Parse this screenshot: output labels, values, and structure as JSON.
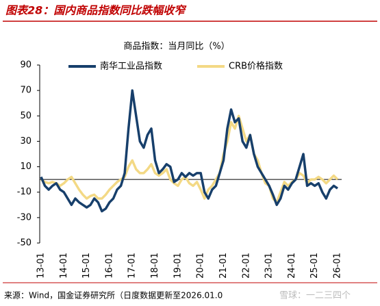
{
  "chart_data": {
    "type": "line",
    "figure_title": "图表28：国内商品指数同比跌幅收窄",
    "title": "商品指数：当月同比（%）",
    "source": "来源：Wind，国金证券研究所（日度数据更新至2026.01.0",
    "watermark": "雪球：一二三四个",
    "legend": "top",
    "ylim": [
      -50,
      90
    ],
    "yticks": [
      -50,
      -30,
      -10,
      10,
      30,
      50,
      70,
      90
    ],
    "categories": [
      "13-01",
      null,
      null,
      null,
      null,
      null,
      "14-01",
      null,
      null,
      null,
      null,
      null,
      "15-01",
      null,
      null,
      null,
      null,
      null,
      "16-01",
      null,
      null,
      null,
      null,
      null,
      "17-01",
      null,
      null,
      null,
      null,
      null,
      "18-01",
      null,
      null,
      null,
      null,
      null,
      "19-01",
      null,
      null,
      null,
      null,
      null,
      "20-01",
      null,
      null,
      null,
      null,
      null,
      "21-01",
      null,
      null,
      null,
      null,
      null,
      "22-01",
      null,
      null,
      null,
      null,
      null,
      "23-01",
      null,
      null,
      null,
      null,
      null,
      "24-01",
      null,
      null,
      null,
      null,
      null,
      "25-01",
      null,
      null,
      null,
      null,
      null,
      "26-01"
    ],
    "series": [
      {
        "name": "南华工业品指数",
        "color": "#173f6b",
        "values": [
          2,
          -5,
          -8,
          -5,
          -3,
          -8,
          -10,
          -15,
          -20,
          -15,
          -18,
          -20,
          -22,
          -20,
          -15,
          -18,
          -25,
          -23,
          -18,
          -15,
          -8,
          -5,
          5,
          40,
          70,
          50,
          30,
          25,
          35,
          40,
          15,
          5,
          8,
          12,
          10,
          -2,
          0,
          5,
          2,
          5,
          3,
          5,
          5,
          -10,
          -15,
          -8,
          -5,
          5,
          15,
          40,
          55,
          45,
          48,
          30,
          25,
          35,
          20,
          10,
          5,
          0,
          -5,
          -12,
          -20,
          -15,
          -5,
          -8,
          -3,
          0,
          10,
          20,
          -5,
          -3,
          -5,
          -3,
          -10,
          -15,
          -8,
          -5,
          -7
        ]
      },
      {
        "name": "CRB价格指数",
        "color": "#f3d985",
        "values": [
          0,
          -2,
          -3,
          -2,
          -3,
          -5,
          -3,
          0,
          2,
          -3,
          -8,
          -12,
          -15,
          -13,
          -12,
          -15,
          -15,
          -12,
          -8,
          -5,
          -2,
          0,
          2,
          10,
          15,
          8,
          5,
          5,
          8,
          12,
          5,
          3,
          5,
          8,
          0,
          -3,
          -5,
          0,
          2,
          -3,
          -5,
          -2,
          -8,
          -15,
          -8,
          -5,
          0,
          5,
          20,
          30,
          45,
          40,
          50,
          40,
          30,
          35,
          20,
          15,
          5,
          -3,
          -5,
          -15,
          -18,
          -10,
          -2,
          -5,
          -2,
          0,
          5,
          3,
          -3,
          0,
          0,
          2,
          0,
          -3,
          0,
          3,
          0
        ]
      }
    ]
  }
}
